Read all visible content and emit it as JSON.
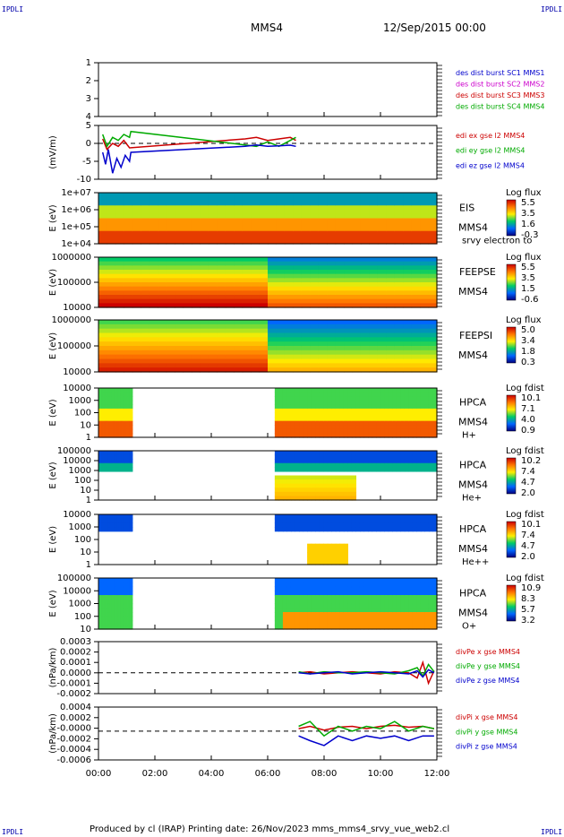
{
  "page": {
    "corner_text": "IPDLI",
    "mission": "MMS4",
    "date": "12/Sep/2015 00:00",
    "footer": "Produced by cl (IRAP)   Printing date: 26/Nov/2023   mms_mms4_srvy_vue_web2.cl"
  },
  "time_axis": {
    "ticks": [
      "00:00",
      "02:00",
      "04:00",
      "06:00",
      "08:00",
      "10:00",
      "12:00"
    ],
    "range_hours": [
      0,
      12
    ]
  },
  "colors": {
    "blue": "#0000cc",
    "magenta": "#cc00cc",
    "red": "#cc0000",
    "green": "#00aa00"
  },
  "chart_data": [
    {
      "type": "line",
      "ylim": [
        0.5,
        4.5
      ],
      "yticks": [
        "1",
        "2",
        "3",
        "4"
      ],
      "legend": [
        {
          "label": "des dist burst SC1 MMS1",
          "color": "#0000cc"
        },
        {
          "label": "des dist burst SC2 MMS2",
          "color": "#cc00cc"
        },
        {
          "label": "des dist burst SC3 MMS3",
          "color": "#cc0000"
        },
        {
          "label": "des dist burst SC4 MMS4",
          "color": "#00aa00"
        }
      ],
      "series": []
    },
    {
      "type": "line",
      "ylabel": "(mV/m)",
      "ylim": [
        -12,
        6
      ],
      "yticks": [
        "5",
        "0",
        "-5",
        "-10"
      ],
      "legend": [
        {
          "label": "edi ex gse l2 MMS4",
          "color": "#cc0000"
        },
        {
          "label": "edi ey gse l2 MMS4",
          "color": "#00aa00"
        },
        {
          "label": "edi ez gse l2 MMS4",
          "color": "#0000cc"
        }
      ],
      "series": [
        {
          "name": "edi ex gse l2 MMS4",
          "color": "#cc0000",
          "x": [
            0.15,
            0.3,
            0.5,
            0.7,
            0.9,
            1.1,
            5.2,
            5.6,
            6.0,
            6.4,
            6.8,
            7.0
          ],
          "y": [
            1.5,
            -2,
            0,
            -1,
            1,
            -1.5,
            1.5,
            2,
            1,
            1.5,
            2,
            1
          ]
        },
        {
          "name": "edi ey gse l2 MMS4",
          "color": "#00aa00",
          "x": [
            0.15,
            0.3,
            0.5,
            0.7,
            0.9,
            1.1,
            1.15,
            5.2,
            5.6,
            6.0,
            6.4,
            6.8,
            7.0
          ],
          "y": [
            3,
            -1,
            2,
            1,
            3,
            2,
            4,
            -0.5,
            -1,
            0.5,
            -1,
            1,
            2
          ]
        },
        {
          "name": "edi ez gse l2 MMS4",
          "color": "#0000cc",
          "x": [
            0.15,
            0.25,
            0.35,
            0.5,
            0.65,
            0.8,
            0.95,
            1.1,
            1.15,
            5.2,
            5.6,
            6.0,
            6.4,
            6.8,
            7.0
          ],
          "y": [
            -3,
            -7,
            -2,
            -10,
            -5,
            -8,
            -4,
            -6,
            -3,
            -1,
            -0.5,
            -1,
            -0.8,
            -0.6,
            -1
          ]
        }
      ]
    },
    {
      "type": "heatmap",
      "ylabel": "E (eV)",
      "yticks": [
        "1e+07",
        "1e+06",
        "1e+05",
        "1e+04"
      ],
      "instrument": "EIS",
      "species": "srvy electron to",
      "spacecraft": "MMS4",
      "colorbar_title": "Log flux",
      "colorbar_ticks": [
        "5.5",
        "3.5",
        "1.6",
        "-0.3"
      ]
    },
    {
      "type": "heatmap",
      "ylabel": "E (eV)",
      "yticks": [
        "1000000",
        "100000",
        "10000"
      ],
      "instrument": "FEEPSE",
      "spacecraft": "MMS4",
      "colorbar_title": "Log flux",
      "colorbar_ticks": [
        "5.5",
        "3.5",
        "1.5",
        "-0.6"
      ]
    },
    {
      "type": "heatmap",
      "ylabel": "E (eV)",
      "yticks": [
        "1000000",
        "100000",
        "10000"
      ],
      "instrument": "FEEPSI",
      "spacecraft": "MMS4",
      "colorbar_title": "Log flux",
      "colorbar_ticks": [
        "5.0",
        "3.4",
        "1.8",
        "0.3"
      ]
    },
    {
      "type": "heatmap",
      "ylabel": "E (eV)",
      "yticks": [
        "10000",
        "1000",
        "100",
        "10",
        "1"
      ],
      "instrument": "HPCA",
      "spacecraft": "MMS4",
      "species": "H+",
      "colorbar_title": "Log fdist",
      "colorbar_ticks": [
        "10.1",
        "7.1",
        "4.0",
        "0.9"
      ],
      "coverage_hours": [
        [
          0,
          1.2
        ],
        [
          6.25,
          12
        ]
      ]
    },
    {
      "type": "heatmap",
      "ylabel": "E (eV)",
      "yticks": [
        "100000",
        "10000",
        "1000",
        "100",
        "10",
        "1"
      ],
      "instrument": "HPCA",
      "spacecraft": "MMS4",
      "species": "He+",
      "colorbar_title": "Log fdist",
      "colorbar_ticks": [
        "10.2",
        "7.4",
        "4.7",
        "2.0"
      ],
      "coverage_hours": [
        [
          0,
          1.2
        ],
        [
          6.25,
          12
        ]
      ]
    },
    {
      "type": "heatmap",
      "ylabel": "E (eV)",
      "yticks": [
        "10000",
        "1000",
        "100",
        "10",
        "1"
      ],
      "instrument": "HPCA",
      "spacecraft": "MMS4",
      "species": "He++",
      "colorbar_title": "Log fdist",
      "colorbar_ticks": [
        "10.1",
        "7.4",
        "4.7",
        "2.0"
      ],
      "coverage_hours": [
        [
          0,
          1.2
        ],
        [
          6.25,
          12
        ]
      ]
    },
    {
      "type": "heatmap",
      "ylabel": "E (eV)",
      "yticks": [
        "100000",
        "10000",
        "1000",
        "100",
        "10"
      ],
      "instrument": "HPCA",
      "spacecraft": "MMS4",
      "species": "O+",
      "colorbar_title": "Log fdist",
      "colorbar_ticks": [
        "10.9",
        "8.3",
        "5.7",
        "3.2"
      ],
      "coverage_hours": [
        [
          0,
          1.2
        ],
        [
          6.25,
          12
        ]
      ]
    },
    {
      "type": "line",
      "ylabel": "(nPa/km)",
      "ylim": [
        -0.0002,
        0.0003
      ],
      "yticks": [
        "0.0003",
        "0.0002",
        "0.0001",
        "0.0000",
        "-0.0001",
        "-0.0002"
      ],
      "legend": [
        {
          "label": "divPe x gse MMS4",
          "color": "#cc0000"
        },
        {
          "label": "divPe y gse MMS4",
          "color": "#00aa00"
        },
        {
          "label": "divPe z gse MMS4",
          "color": "#0000cc"
        }
      ],
      "series": [
        {
          "name": "divPe x gse MMS4",
          "color": "#cc0000",
          "x": [
            7.1,
            7.5,
            8,
            8.5,
            9,
            9.5,
            10,
            10.5,
            11,
            11.3,
            11.5,
            11.7,
            11.9
          ],
          "y": [
            0,
            1e-05,
            -1e-05,
            0,
            1e-05,
            0,
            -1e-05,
            1e-05,
            0,
            -5e-05,
            0.0001,
            -0.0001,
            2e-05
          ]
        },
        {
          "name": "divPe y gse MMS4",
          "color": "#00aa00",
          "x": [
            7.1,
            7.5,
            8,
            8.5,
            9,
            9.5,
            10,
            10.5,
            11,
            11.3,
            11.5,
            11.7,
            11.9
          ],
          "y": [
            1e-05,
            -1e-05,
            1e-05,
            0,
            0,
            1e-05,
            0,
            -1e-05,
            2e-05,
            5e-05,
            -3e-05,
            8e-05,
            1e-05
          ]
        },
        {
          "name": "divPe z gse MMS4",
          "color": "#0000cc",
          "x": [
            7.1,
            7.5,
            8,
            8.5,
            9,
            9.5,
            10,
            10.5,
            11,
            11.3,
            11.5,
            11.7,
            11.9
          ],
          "y": [
            0,
            -1e-05,
            0,
            1e-05,
            -1e-05,
            0,
            1e-05,
            0,
            -1e-05,
            2e-05,
            -4e-05,
            3e-05,
            0
          ]
        }
      ]
    },
    {
      "type": "line",
      "ylabel": "(nPa/km)",
      "ylim": [
        -0.0006,
        0.0005
      ],
      "yticks": [
        "0.0004",
        "0.0002",
        "-0.0000",
        "-0.0002",
        "-0.0004",
        "-0.0006"
      ],
      "legend": [
        {
          "label": "divPi x gse MMS4",
          "color": "#cc0000"
        },
        {
          "label": "divPi y gse MMS4",
          "color": "#00aa00"
        },
        {
          "label": "divPi z gse MMS4",
          "color": "#0000cc"
        }
      ],
      "series": [
        {
          "name": "divPi x gse MMS4",
          "color": "#cc0000",
          "x": [
            7.1,
            7.5,
            8,
            8.5,
            9,
            9.5,
            10,
            10.5,
            11,
            11.5,
            11.9
          ],
          "y": [
            5e-05,
            0.0001,
            2e-05,
            8e-05,
            0.0001,
            5e-05,
            0.0001,
            0.00012,
            8e-05,
            0.0001,
            5e-05
          ]
        },
        {
          "name": "divPi y gse MMS4",
          "color": "#00aa00",
          "x": [
            7.1,
            7.5,
            8,
            8.5,
            9,
            9.5,
            10,
            10.5,
            11,
            11.5,
            11.9
          ],
          "y": [
            0.0001,
            0.0002,
            -0.0001,
            0.0001,
            0,
            0.0001,
            5e-05,
            0.0002,
            0,
            0.0001,
            5e-05
          ]
        },
        {
          "name": "divPi z gse MMS4",
          "color": "#0000cc",
          "x": [
            7.1,
            7.5,
            8,
            8.5,
            9,
            9.5,
            10,
            10.5,
            11,
            11.5,
            11.9
          ],
          "y": [
            -0.0001,
            -0.0002,
            -0.0003,
            -0.0001,
            -0.0002,
            -0.0001,
            -0.00015,
            -0.0001,
            -0.0002,
            -0.0001,
            -0.0001
          ]
        }
      ]
    }
  ]
}
